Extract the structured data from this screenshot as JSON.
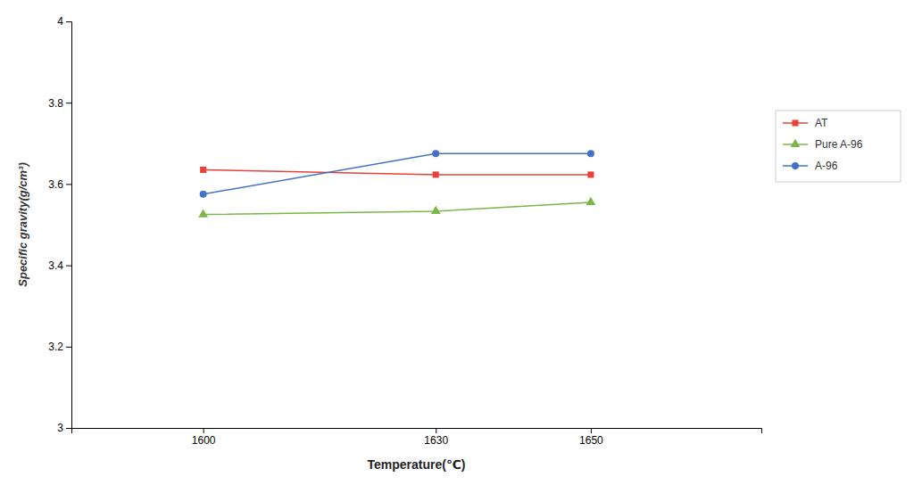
{
  "chart_data": {
    "type": "line",
    "xlabel": "Temperature(℃)",
    "ylabel": "Specific gravity(g/cm³)",
    "x": [
      1600,
      1630,
      1650
    ],
    "series": [
      {
        "name": "AT",
        "color": "#e8413a",
        "marker": "square",
        "values": [
          3.635,
          3.623,
          3.623
        ]
      },
      {
        "name": "Pure A-96",
        "color": "#7ab648",
        "marker": "triangle-up",
        "values": [
          3.525,
          3.533,
          3.555
        ]
      },
      {
        "name": "A-96",
        "color": "#4472c4",
        "marker": "circle",
        "values": [
          3.575,
          3.675,
          3.675
        ]
      }
    ],
    "xlim": [
      1583,
      1672
    ],
    "xticks": [
      1600,
      1630,
      1650
    ],
    "ylim": [
      3,
      4
    ],
    "yticks": [
      3,
      3.2,
      3.4,
      3.6,
      3.8,
      4
    ],
    "grid": false,
    "legend": "right"
  }
}
